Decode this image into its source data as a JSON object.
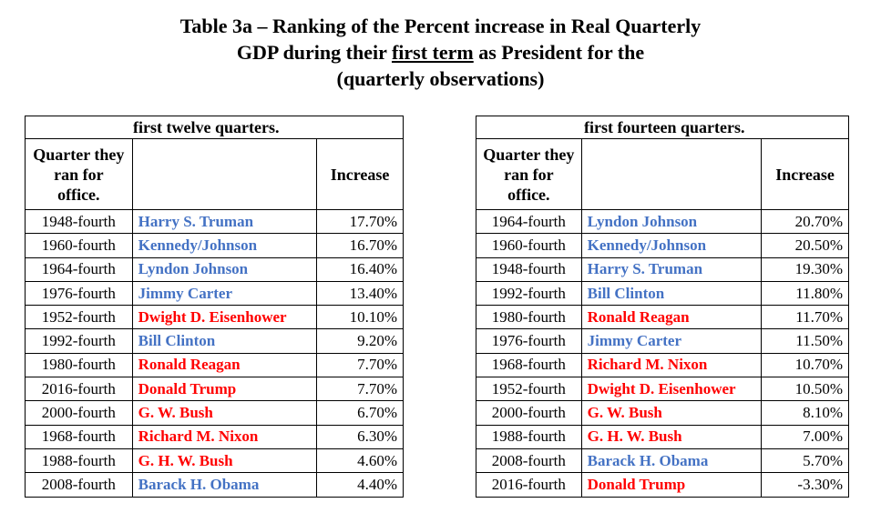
{
  "title": {
    "line1": "Table 3a – Ranking of the Percent increase in Real Quarterly",
    "line2_pre": "GDP during their ",
    "line2_underlined": "first term",
    "line2_post": " as President for the",
    "line3": "(quarterly observations)"
  },
  "colors": {
    "democrat": "#4472C4",
    "republican": "#FF0000"
  },
  "table_twelve": {
    "caption": "first twelve quarters.",
    "header": {
      "quarter": "Quarter they ran for office.",
      "increase": "Increase"
    },
    "rows": [
      {
        "quarter": "1948-fourth",
        "name": "Harry S. Truman",
        "party": "blue",
        "increase": "17.70%"
      },
      {
        "quarter": "1960-fourth",
        "name": "Kennedy/Johnson",
        "party": "blue",
        "increase": "16.70%"
      },
      {
        "quarter": "1964-fourth",
        "name": "Lyndon Johnson",
        "party": "blue",
        "increase": "16.40%"
      },
      {
        "quarter": "1976-fourth",
        "name": "Jimmy Carter",
        "party": "blue",
        "increase": "13.40%"
      },
      {
        "quarter": "1952-fourth",
        "name": "Dwight D. Eisenhower",
        "party": "red",
        "increase": "10.10%"
      },
      {
        "quarter": "1992-fourth",
        "name": "Bill Clinton",
        "party": "blue",
        "increase": "9.20%"
      },
      {
        "quarter": "1980-fourth",
        "name": "Ronald Reagan",
        "party": "red",
        "increase": "7.70%"
      },
      {
        "quarter": "2016-fourth",
        "name": "Donald Trump",
        "party": "red",
        "increase": "7.70%"
      },
      {
        "quarter": "2000-fourth",
        "name": "G. W. Bush",
        "party": "red",
        "increase": "6.70%"
      },
      {
        "quarter": "1968-fourth",
        "name": "Richard M. Nixon",
        "party": "red",
        "increase": "6.30%"
      },
      {
        "quarter": "1988-fourth",
        "name": "G. H. W. Bush",
        "party": "red",
        "increase": "4.60%"
      },
      {
        "quarter": "2008-fourth",
        "name": "Barack H. Obama",
        "party": "blue",
        "increase": "4.40%"
      }
    ]
  },
  "table_fourteen": {
    "caption": "first fourteen quarters.",
    "header": {
      "quarter": "Quarter they ran for office.",
      "increase": "Increase"
    },
    "rows": [
      {
        "quarter": "1964-fourth",
        "name": "Lyndon Johnson",
        "party": "blue",
        "increase": "20.70%"
      },
      {
        "quarter": "1960-fourth",
        "name": "Kennedy/Johnson",
        "party": "blue",
        "increase": "20.50%"
      },
      {
        "quarter": "1948-fourth",
        "name": "Harry S. Truman",
        "party": "blue",
        "increase": "19.30%"
      },
      {
        "quarter": "1992-fourth",
        "name": "Bill Clinton",
        "party": "blue",
        "increase": "11.80%"
      },
      {
        "quarter": "1980-fourth",
        "name": "Ronald Reagan",
        "party": "red",
        "increase": "11.70%"
      },
      {
        "quarter": "1976-fourth",
        "name": "Jimmy Carter",
        "party": "blue",
        "increase": "11.50%"
      },
      {
        "quarter": "1968-fourth",
        "name": "Richard M. Nixon",
        "party": "red",
        "increase": "10.70%"
      },
      {
        "quarter": "1952-fourth",
        "name": "Dwight D. Eisenhower",
        "party": "red",
        "increase": "10.50%"
      },
      {
        "quarter": "2000-fourth",
        "name": "G. W. Bush",
        "party": "red",
        "increase": "8.10%"
      },
      {
        "quarter": "1988-fourth",
        "name": "G. H. W. Bush",
        "party": "red",
        "increase": "7.00%"
      },
      {
        "quarter": "2008-fourth",
        "name": "Barack H. Obama",
        "party": "blue",
        "increase": "5.70%"
      },
      {
        "quarter": "2016-fourth",
        "name": "Donald Trump",
        "party": "red",
        "increase": "-3.30%"
      }
    ]
  }
}
